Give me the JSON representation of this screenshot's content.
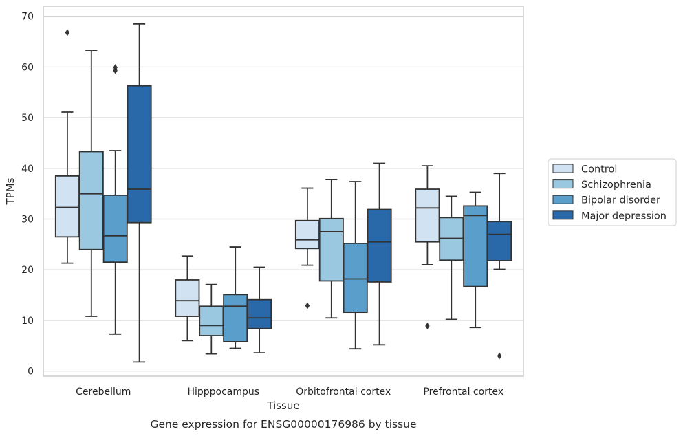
{
  "chart_data": {
    "type": "box",
    "xlabel": "Tissue",
    "ylabel": "TPMs",
    "caption": "Gene expression for ENSG00000176986 by tissue",
    "ylim": [
      -1,
      72
    ],
    "yticks": [
      0,
      10,
      20,
      30,
      40,
      50,
      60,
      70
    ],
    "grid": "horizontal",
    "legend_placement": "right, outside plot",
    "categories": [
      "Cerebellum",
      "Hipppocampus",
      "Orbitofrontal cortex",
      "Prefrontal cortex"
    ],
    "series": [
      {
        "name": "Control",
        "color": "#d1e2f3",
        "boxes": [
          {
            "whislo": 21.3,
            "q1": 26.5,
            "med": 32.3,
            "q3": 38.5,
            "whishi": 51.1,
            "fliers": [
              66.8
            ]
          },
          {
            "whislo": 6.0,
            "q1": 10.8,
            "med": 13.9,
            "q3": 18.0,
            "whishi": 22.7,
            "fliers": []
          },
          {
            "whislo": 20.9,
            "q1": 24.2,
            "med": 25.9,
            "q3": 29.7,
            "whishi": 36.1,
            "fliers": [
              12.9
            ]
          },
          {
            "whislo": 21.0,
            "q1": 25.5,
            "med": 32.2,
            "q3": 35.9,
            "whishi": 40.5,
            "fliers": [
              8.9
            ]
          }
        ]
      },
      {
        "name": "Schizophrenia",
        "color": "#9ac8e0",
        "boxes": [
          {
            "whislo": 10.8,
            "q1": 24.0,
            "med": 35.0,
            "q3": 43.3,
            "whishi": 63.3,
            "fliers": []
          },
          {
            "whislo": 3.4,
            "q1": 7.0,
            "med": 9.0,
            "q3": 12.8,
            "whishi": 17.1,
            "fliers": []
          },
          {
            "whislo": 10.5,
            "q1": 17.8,
            "med": 27.5,
            "q3": 30.1,
            "whishi": 37.8,
            "fliers": []
          },
          {
            "whislo": 10.2,
            "q1": 21.9,
            "med": 26.2,
            "q3": 30.3,
            "whishi": 34.5,
            "fliers": []
          }
        ]
      },
      {
        "name": "Bipolar disorder",
        "color": "#5a9fcc",
        "boxes": [
          {
            "whislo": 7.3,
            "q1": 21.5,
            "med": 26.7,
            "q3": 34.7,
            "whishi": 43.5,
            "fliers": [
              59.3,
              59.9
            ]
          },
          {
            "whislo": 4.5,
            "q1": 5.8,
            "med": 12.8,
            "q3": 15.1,
            "whishi": 24.5,
            "fliers": []
          },
          {
            "whislo": 4.4,
            "q1": 11.6,
            "med": 18.2,
            "q3": 25.2,
            "whishi": 37.4,
            "fliers": []
          },
          {
            "whislo": 8.6,
            "q1": 16.7,
            "med": 30.7,
            "q3": 32.6,
            "whishi": 35.3,
            "fliers": []
          }
        ]
      },
      {
        "name": "Major depression",
        "color": "#2a69a9",
        "boxes": [
          {
            "whislo": 1.8,
            "q1": 29.3,
            "med": 35.9,
            "q3": 56.3,
            "whishi": 68.5,
            "fliers": []
          },
          {
            "whislo": 3.6,
            "q1": 8.4,
            "med": 10.5,
            "q3": 14.1,
            "whishi": 20.5,
            "fliers": []
          },
          {
            "whislo": 5.2,
            "q1": 17.6,
            "med": 25.5,
            "q3": 31.9,
            "whishi": 41.0,
            "fliers": []
          },
          {
            "whislo": 20.1,
            "q1": 21.8,
            "med": 27.0,
            "q3": 29.5,
            "whishi": 39.0,
            "fliers": [
              3.0
            ]
          }
        ]
      }
    ]
  }
}
